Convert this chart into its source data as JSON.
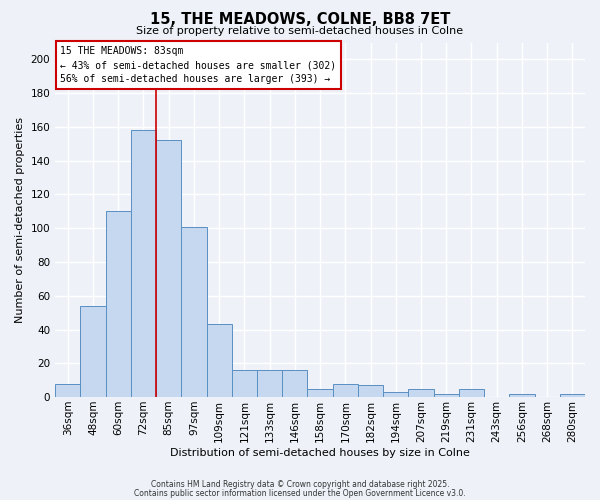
{
  "title": "15, THE MEADOWS, COLNE, BB8 7ET",
  "subtitle": "Size of property relative to semi-detached houses in Colne",
  "xlabel": "Distribution of semi-detached houses by size in Colne",
  "ylabel": "Number of semi-detached properties",
  "bar_labels": [
    "36sqm",
    "48sqm",
    "60sqm",
    "72sqm",
    "85sqm",
    "97sqm",
    "109sqm",
    "121sqm",
    "133sqm",
    "146sqm",
    "158sqm",
    "170sqm",
    "182sqm",
    "194sqm",
    "207sqm",
    "219sqm",
    "231sqm",
    "243sqm",
    "256sqm",
    "268sqm",
    "280sqm"
  ],
  "bar_values": [
    8,
    54,
    110,
    158,
    152,
    101,
    43,
    16,
    16,
    16,
    5,
    8,
    7,
    3,
    5,
    2,
    5,
    0,
    2,
    0,
    2
  ],
  "bar_color": "#c5d8f0",
  "bar_edge_color": "#5a8fc3",
  "ylim": [
    0,
    210
  ],
  "yticks": [
    0,
    20,
    40,
    60,
    80,
    100,
    120,
    140,
    160,
    180,
    200
  ],
  "vline_index": 3.5,
  "vline_color": "#cc0000",
  "annotation_title": "15 THE MEADOWS: 83sqm",
  "annotation_line1": "← 43% of semi-detached houses are smaller (302)",
  "annotation_line2": "56% of semi-detached houses are larger (393) →",
  "annotation_box_color": "#ffffff",
  "annotation_box_edge": "#cc0000",
  "footer1": "Contains HM Land Registry data © Crown copyright and database right 2025.",
  "footer2": "Contains public sector information licensed under the Open Government Licence v3.0.",
  "bg_color": "#eef2f8",
  "plot_bg_color": "#eef2f8",
  "grid_color": "#ffffff",
  "title_fontsize": 10.5,
  "subtitle_fontsize": 8,
  "axis_label_fontsize": 8,
  "tick_fontsize": 7.5,
  "annotation_fontsize": 7,
  "footer_fontsize": 5.5
}
